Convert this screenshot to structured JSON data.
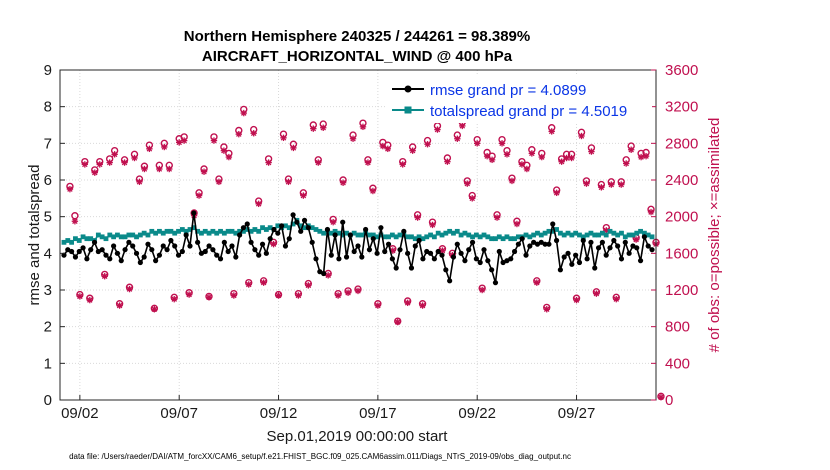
{
  "chart_data": {
    "type": "line",
    "title": "Northern Hemisphere 240325 / 244261 = 98.389%",
    "subtitle": "AIRCRAFT_HORIZONTAL_WIND @ 400 hPa",
    "xlabel": "Sep.01,2019 00:00:00 start",
    "ylabel": "rmse and totalspread",
    "y2label": "# of obs: o=possible; ×=assimilated",
    "footer": "data file: /Users/raeder/DAI/ATM_forcXX/CAM6_setup/f.e21.FHIST_BGC.f09_025.CAM6assim.011/Diags_NTrS_2019-09/obs_diag_output.nc",
    "xlim": [
      0.5,
      30.5
    ],
    "ylim": [
      0,
      9
    ],
    "y2lim": [
      0,
      3600
    ],
    "x_ticks": [
      1.5,
      6.5,
      11.5,
      16.5,
      21.5,
      26.5
    ],
    "x_tick_labels": [
      "09/02",
      "09/07",
      "09/12",
      "09/17",
      "09/22",
      "09/27"
    ],
    "y_ticks": [
      0,
      1,
      2,
      3,
      4,
      5,
      6,
      7,
      8,
      9
    ],
    "y_tick_labels": [
      "0",
      "1",
      "2",
      "3",
      "4",
      "5",
      "6",
      "7",
      "8",
      "9"
    ],
    "y2_ticks": [
      0,
      400,
      800,
      1200,
      1600,
      2000,
      2400,
      2800,
      3200,
      3600
    ],
    "y2_tick_labels": [
      "0",
      "400",
      "800",
      "1200",
      "1600",
      "2000",
      "2400",
      "2800",
      "3200",
      "3600"
    ],
    "grid": true,
    "legend_position": "top-right",
    "legend": [
      "rmse grand pr = 4.0899",
      "totalspread grand pr = 4.5019"
    ],
    "colors": {
      "rmse": "#000000",
      "totalspread": "#0a8a8a",
      "obs": "#c0104f",
      "legend_text": "#0a35e6"
    },
    "series": [
      {
        "name": "rmse",
        "values": [
          3.95,
          4.1,
          4.05,
          3.9,
          4.05,
          4.15,
          3.85,
          4.1,
          4.3,
          4.05,
          4.1,
          3.95,
          3.85,
          4.2,
          4.0,
          3.8,
          4.1,
          4.3,
          4.2,
          4.0,
          3.75,
          3.9,
          4.25,
          4.1,
          3.8,
          3.95,
          4.2,
          4.1,
          4.35,
          4.2,
          3.95,
          4.05,
          4.5,
          4.2,
          5.1,
          4.3,
          4.0,
          4.05,
          4.2,
          4.1,
          3.95,
          3.85,
          4.3,
          4.05,
          4.2,
          3.9,
          4.5,
          4.7,
          4.8,
          4.3,
          4.1,
          3.95,
          4.25,
          4.0,
          4.4,
          4.65,
          4.55,
          4.75,
          4.2,
          4.4,
          5.05,
          4.85,
          4.6,
          4.9,
          4.7,
          4.3,
          3.85,
          3.5,
          3.45,
          4.65,
          3.95,
          4.5,
          3.85,
          4.85,
          3.9,
          4.5,
          4.05,
          4.2,
          3.9,
          4.65,
          4.1,
          4.4,
          4.0,
          4.7,
          4.05,
          4.25,
          3.85,
          3.6,
          4.1,
          4.6,
          4.0,
          3.6,
          4.2,
          4.35,
          3.85,
          4.05,
          4.0,
          3.85,
          4.05,
          3.95,
          3.55,
          3.25,
          3.9,
          4.25,
          4.0,
          3.8,
          4.1,
          4.3,
          3.85,
          3.75,
          4.1,
          3.8,
          3.55,
          3.2,
          4.05,
          3.75,
          3.8,
          3.85,
          4.05,
          4.25,
          4.4,
          3.95,
          4.2,
          4.3,
          4.25,
          4.3,
          4.25,
          4.25,
          4.8,
          4.35,
          3.55,
          3.9,
          4.0,
          3.7,
          3.95,
          3.75,
          4.35,
          3.85,
          4.3,
          3.6,
          4.15,
          4.3,
          3.95,
          4.15,
          4.35,
          4.2,
          3.85,
          4.3,
          4.0,
          4.2,
          4.15,
          3.8,
          4.45,
          4.2,
          4.1
        ]
      },
      {
        "name": "totalspread",
        "values": [
          4.3,
          4.35,
          4.3,
          4.4,
          4.35,
          4.45,
          4.4,
          4.4,
          4.35,
          4.5,
          4.45,
          4.4,
          4.5,
          4.45,
          4.5,
          4.45,
          4.45,
          4.5,
          4.5,
          4.45,
          4.5,
          4.55,
          4.5,
          4.6,
          4.55,
          4.6,
          4.55,
          4.6,
          4.6,
          4.55,
          4.6,
          4.65,
          4.6,
          4.65,
          4.7,
          4.6,
          4.55,
          4.6,
          4.55,
          4.6,
          4.55,
          4.6,
          4.55,
          4.6,
          4.6,
          4.55,
          4.6,
          4.6,
          4.65,
          4.6,
          4.65,
          4.6,
          4.7,
          4.65,
          4.7,
          4.65,
          4.75,
          4.7,
          4.75,
          4.7,
          4.8,
          4.9,
          4.75,
          4.7,
          4.75,
          4.7,
          4.65,
          4.6,
          4.55,
          4.6,
          4.55,
          4.6,
          4.55,
          4.5,
          4.55,
          4.5,
          4.55,
          4.5,
          4.5,
          4.55,
          4.5,
          4.5,
          4.45,
          4.5,
          4.45,
          4.45,
          4.5,
          4.45,
          4.5,
          4.5,
          4.45,
          4.45,
          4.4,
          4.45,
          4.4,
          4.45,
          4.5,
          4.45,
          4.55,
          4.5,
          4.55,
          4.6,
          4.55,
          4.6,
          4.5,
          4.55,
          4.5,
          4.45,
          4.5,
          4.45,
          4.5,
          4.45,
          4.4,
          4.4,
          4.45,
          4.4,
          4.45,
          4.4,
          4.4,
          4.45,
          4.45,
          4.5,
          4.45,
          4.5,
          4.55,
          4.5,
          4.55,
          4.6,
          4.6,
          4.65,
          4.55,
          4.5,
          4.55,
          4.5,
          4.55,
          4.5,
          4.45,
          4.5,
          4.55,
          4.5,
          4.5,
          4.55,
          4.5,
          4.6,
          4.55,
          4.5,
          4.55,
          4.45,
          4.5,
          4.5,
          4.55,
          4.6,
          4.55,
          4.5,
          4.45
        ]
      }
    ],
    "obs_cycle_hours": [
      0,
      6,
      12,
      18
    ],
    "obs_possible": [
      [
        2330,
        2010,
        1150,
        2600
      ],
      [
        1110,
        2510,
        2600,
        1370
      ],
      [
        2630,
        2720,
        1050,
        2620
      ],
      [
        1230,
        2680,
        2410,
        2550
      ],
      [
        2780,
        1000,
        2560,
        2800
      ],
      [
        2560,
        1120,
        2850,
        2870
      ],
      [
        1170,
        2040,
        2260,
        2520
      ],
      [
        1130,
        2870,
        2410,
        2760
      ],
      [
        2690,
        1160,
        2940,
        3170
      ],
      [
        1280,
        2950,
        2170,
        1300
      ],
      [
        2630,
        1720,
        1150,
        2900
      ],
      [
        2410,
        2790,
        1160,
        2260
      ],
      [
        1270,
        3000,
        2620,
        3010
      ],
      [
        1380,
        1970,
        1160,
        2400
      ],
      [
        1190,
        2890,
        1210,
        3020
      ],
      [
        2620,
        2310,
        1050,
        2810
      ],
      [
        2780,
        1650,
        860,
        2600
      ],
      [
        1080,
        2760,
        2020,
        1050
      ],
      [
        2830,
        1940,
        2990,
        1650
      ],
      [
        2640,
        1600,
        2890,
        3030
      ],
      [
        2390,
        2230,
        2840,
        1220
      ],
      [
        2700,
        2660,
        2020,
        2840
      ],
      [
        2720,
        2420,
        1950,
        2600
      ],
      [
        2560,
        2730,
        1300,
        2690
      ],
      [
        1010,
        2970,
        2290,
        2630
      ],
      [
        2680,
        2680,
        1110,
        2920
      ],
      [
        2390,
        2750,
        1180,
        2350
      ],
      [
        1880,
        2380,
        1120,
        2380
      ],
      [
        2620,
        2770,
        1770,
        2690
      ],
      [
        2700,
        2080,
        1720,
        40
      ]
    ],
    "obs_assimilated": [
      [
        2300,
        1950,
        1130,
        2570
      ],
      [
        1090,
        2480,
        2570,
        1350
      ],
      [
        2590,
        2680,
        1030,
        2590
      ],
      [
        1210,
        2640,
        2380,
        2520
      ],
      [
        2740,
        990,
        2520,
        2760
      ],
      [
        2520,
        1100,
        2810,
        2830
      ],
      [
        1150,
        2010,
        2230,
        2490
      ],
      [
        1120,
        2830,
        2380,
        2720
      ],
      [
        2650,
        1140,
        2900,
        3130
      ],
      [
        1260,
        2910,
        2140,
        1280
      ],
      [
        2590,
        1700,
        1140,
        2860
      ],
      [
        2380,
        2750,
        1140,
        2230
      ],
      [
        1250,
        2960,
        2590,
        2970
      ],
      [
        1360,
        1940,
        1140,
        2370
      ],
      [
        1170,
        2850,
        1190,
        2980
      ],
      [
        2590,
        2280,
        1030,
        2770
      ],
      [
        2740,
        1630,
        850,
        2570
      ],
      [
        1060,
        2720,
        1990,
        1030
      ],
      [
        2790,
        1910,
        2950,
        1630
      ],
      [
        2600,
        1580,
        2850,
        2990
      ],
      [
        2360,
        2200,
        2800,
        1200
      ],
      [
        2660,
        2620,
        1990,
        2800
      ],
      [
        2680,
        2390,
        1920,
        2570
      ],
      [
        2520,
        2690,
        1280,
        2650
      ],
      [
        990,
        2930,
        2260,
        2600
      ],
      [
        2640,
        2640,
        1090,
        2880
      ],
      [
        2360,
        2710,
        1160,
        2320
      ],
      [
        1850,
        2350,
        1100,
        2350
      ],
      [
        2580,
        2730,
        1750,
        2650
      ],
      [
        2660,
        2050,
        1700,
        30
      ]
    ]
  }
}
